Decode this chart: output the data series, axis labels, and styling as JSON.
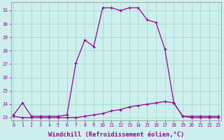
{
  "xlabel": "Windchill (Refroidissement éolien,°C)",
  "ylabel": "",
  "background_color": "#cdf0ee",
  "grid_color": "#aaddcc",
  "line_color": "#990099",
  "xlim": [
    -0.3,
    23.3
  ],
  "ylim": [
    22.8,
    31.6
  ],
  "yticks": [
    23,
    24,
    25,
    26,
    27,
    28,
    29,
    30,
    31
  ],
  "xticks": [
    0,
    1,
    2,
    3,
    4,
    5,
    6,
    7,
    8,
    9,
    10,
    11,
    12,
    13,
    14,
    15,
    16,
    17,
    18,
    19,
    20,
    21,
    22,
    23
  ],
  "curve1_x": [
    0,
    1,
    2,
    3,
    4,
    5,
    6,
    7,
    8,
    9,
    10,
    11,
    12,
    13,
    14,
    15,
    16,
    17,
    18,
    19,
    20,
    21,
    22,
    23
  ],
  "curve1_y": [
    23.2,
    24.1,
    23.1,
    23.1,
    23.1,
    23.1,
    23.2,
    27.1,
    28.8,
    28.3,
    31.2,
    31.2,
    31.0,
    31.2,
    31.2,
    30.3,
    30.1,
    28.1,
    24.1,
    23.1,
    23.1,
    23.1,
    23.1,
    23.1
  ],
  "curve2_x": [
    0,
    1,
    2,
    3,
    4,
    5,
    6,
    7,
    8,
    9,
    10,
    11,
    12,
    13,
    14,
    15,
    16,
    17,
    18,
    19,
    20,
    21,
    22,
    23
  ],
  "curve2_y": [
    23.1,
    23.0,
    23.0,
    23.0,
    23.0,
    23.0,
    23.0,
    23.0,
    23.1,
    23.2,
    23.3,
    23.5,
    23.6,
    23.8,
    23.9,
    24.0,
    24.1,
    24.2,
    24.1,
    23.1,
    23.0,
    23.0,
    23.0,
    23.0
  ]
}
